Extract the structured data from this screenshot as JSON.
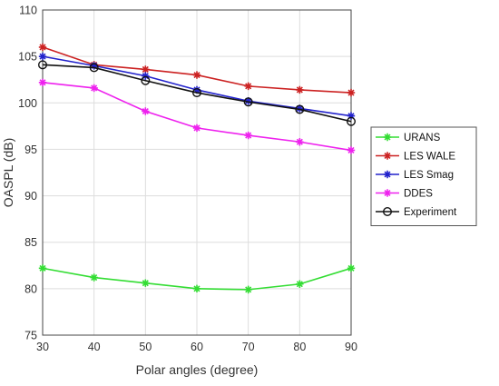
{
  "chart_data": {
    "type": "line",
    "title": "",
    "xlabel": "Polar angles (degree)",
    "ylabel": "OASPL (dB)",
    "x": [
      30,
      40,
      50,
      60,
      70,
      80,
      90
    ],
    "xlim": [
      30,
      90
    ],
    "ylim": [
      75,
      110
    ],
    "xticks": [
      30,
      40,
      50,
      60,
      70,
      80,
      90
    ],
    "yticks": [
      75,
      80,
      85,
      90,
      95,
      100,
      105,
      110
    ],
    "grid": true,
    "legend_position": "right",
    "series": [
      {
        "name": "URANS",
        "color": "#33dd33",
        "marker": "star",
        "values": [
          82.2,
          81.2,
          80.6,
          80.0,
          79.9,
          80.5,
          82.2
        ]
      },
      {
        "name": "LES WALE",
        "color": "#cc2222",
        "marker": "star",
        "values": [
          106.0,
          104.1,
          103.6,
          103.0,
          101.8,
          101.4,
          101.1
        ]
      },
      {
        "name": "LES Smag",
        "color": "#2222cc",
        "marker": "star",
        "values": [
          105.0,
          104.0,
          102.9,
          101.4,
          100.2,
          99.4,
          98.6
        ]
      },
      {
        "name": "DDES",
        "color": "#ee22ee",
        "marker": "star",
        "values": [
          102.2,
          101.6,
          99.1,
          97.3,
          96.5,
          95.8,
          94.9
        ]
      },
      {
        "name": "Experiment",
        "color": "#111111",
        "marker": "circle",
        "values": [
          104.1,
          103.8,
          102.4,
          101.1,
          100.1,
          99.3,
          98.0
        ]
      }
    ]
  }
}
